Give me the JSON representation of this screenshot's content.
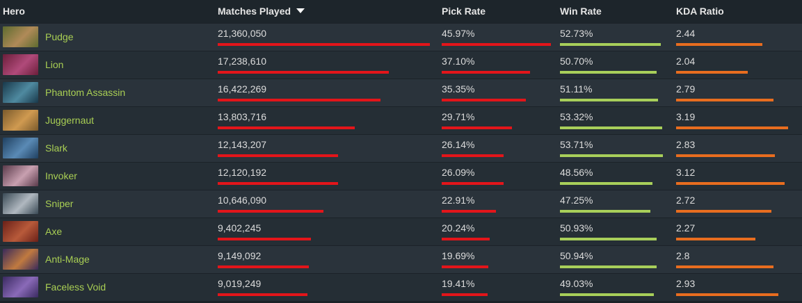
{
  "table": {
    "headers": {
      "hero": "Hero",
      "matches": "Matches Played",
      "pick_rate": "Pick Rate",
      "win_rate": "Win Rate",
      "kda": "KDA Ratio"
    },
    "sort_icon": "sort-desc-icon",
    "colors": {
      "matches_bar": "#e3151a",
      "pick_bar": "#e3151a",
      "win_bar": "#a8cf5a",
      "kda_bar": "#e86d1f",
      "hero_name": "#a9cf54"
    },
    "rows": [
      {
        "hero": "Pudge",
        "matches": "21,360,050",
        "matches_frac": 1.0,
        "pick": "45.97%",
        "pick_frac": 1.0,
        "win": "52.73%",
        "win_frac": 0.95,
        "kda": "2.44",
        "kda_frac": 0.77,
        "portrait": [
          "#5d6b2f",
          "#b08a58"
        ]
      },
      {
        "hero": "Lion",
        "matches": "17,238,610",
        "matches_frac": 0.806,
        "pick": "37.10%",
        "pick_frac": 0.807,
        "win": "50.70%",
        "win_frac": 0.91,
        "kda": "2.04",
        "kda_frac": 0.64,
        "portrait": [
          "#6b1e3a",
          "#b04a7a"
        ]
      },
      {
        "hero": "Phantom Assassin",
        "matches": "16,422,269",
        "matches_frac": 0.768,
        "pick": "35.35%",
        "pick_frac": 0.769,
        "win": "51.11%",
        "win_frac": 0.92,
        "kda": "2.79",
        "kda_frac": 0.87,
        "portrait": [
          "#18384a",
          "#4f8aa0"
        ]
      },
      {
        "hero": "Juggernaut",
        "matches": "13,803,716",
        "matches_frac": 0.646,
        "pick": "29.71%",
        "pick_frac": 0.646,
        "win": "53.32%",
        "win_frac": 0.96,
        "kda": "3.19",
        "kda_frac": 1.0,
        "portrait": [
          "#7a5a2c",
          "#d09a50"
        ]
      },
      {
        "hero": "Slark",
        "matches": "12,143,207",
        "matches_frac": 0.568,
        "pick": "26.14%",
        "pick_frac": 0.569,
        "win": "53.71%",
        "win_frac": 0.97,
        "kda": "2.83",
        "kda_frac": 0.88,
        "portrait": [
          "#1f4060",
          "#5a8ab5"
        ]
      },
      {
        "hero": "Invoker",
        "matches": "12,120,192",
        "matches_frac": 0.567,
        "pick": "26.09%",
        "pick_frac": 0.568,
        "win": "48.56%",
        "win_frac": 0.87,
        "kda": "3.12",
        "kda_frac": 0.97,
        "portrait": [
          "#5a3a4a",
          "#c8a0b0"
        ]
      },
      {
        "hero": "Sniper",
        "matches": "10,646,090",
        "matches_frac": 0.498,
        "pick": "22.91%",
        "pick_frac": 0.498,
        "win": "47.25%",
        "win_frac": 0.85,
        "kda": "2.72",
        "kda_frac": 0.85,
        "portrait": [
          "#3a4a55",
          "#b0b8c0"
        ]
      },
      {
        "hero": "Axe",
        "matches": "9,402,245",
        "matches_frac": 0.44,
        "pick": "20.24%",
        "pick_frac": 0.44,
        "win": "50.93%",
        "win_frac": 0.91,
        "kda": "2.27",
        "kda_frac": 0.71,
        "portrait": [
          "#6a2018",
          "#b85a3a"
        ]
      },
      {
        "hero": "Anti-Mage",
        "matches": "9,149,092",
        "matches_frac": 0.428,
        "pick": "19.69%",
        "pick_frac": 0.428,
        "win": "50.94%",
        "win_frac": 0.91,
        "kda": "2.8",
        "kda_frac": 0.87,
        "portrait": [
          "#3a2a5a",
          "#c07a40"
        ]
      },
      {
        "hero": "Faceless Void",
        "matches": "9,019,249",
        "matches_frac": 0.422,
        "pick": "19.41%",
        "pick_frac": 0.422,
        "win": "49.03%",
        "win_frac": 0.88,
        "kda": "2.93",
        "kda_frac": 0.91,
        "portrait": [
          "#3a2a60",
          "#8a6ab8"
        ]
      }
    ]
  }
}
